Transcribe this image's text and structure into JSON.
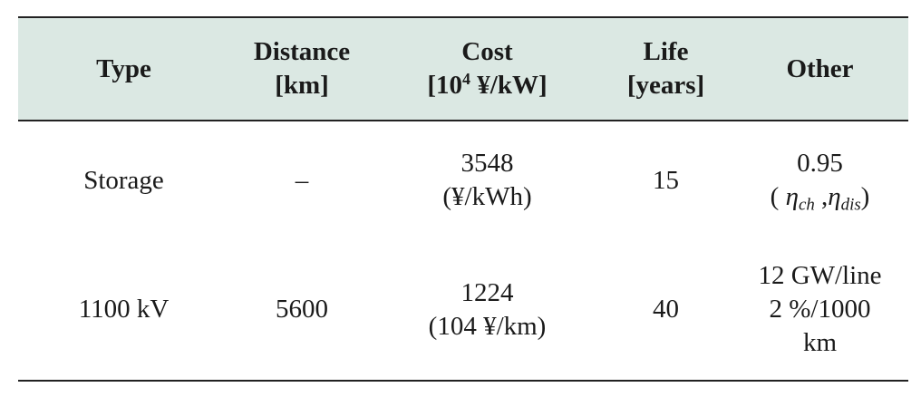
{
  "table": {
    "headers": {
      "type": "Type",
      "distance": {
        "line1": "Distance",
        "line2": "[km]"
      },
      "cost": {
        "line1": "Cost",
        "line2_prefix": "[10",
        "line2_sup": "4",
        "line2_suffix": " ¥/kW]"
      },
      "life": {
        "line1": "Life",
        "line2": "[years]"
      },
      "other": "Other"
    },
    "rows": [
      {
        "type": "Storage",
        "distance": "–",
        "cost": {
          "line1": "3548",
          "line2": "(¥/kWh)"
        },
        "life": "15",
        "other": {
          "line1": "0.95",
          "open": "( ",
          "eta1": "η",
          "sub1": "ch",
          "comma": " ,",
          "eta2": "η",
          "sub2": "dis",
          "close": ")"
        }
      },
      {
        "type": "1100 kV",
        "distance": "5600",
        "cost": {
          "line1": "1224",
          "line2": "(104 ¥/km)"
        },
        "life": "40",
        "other": {
          "line1": "12 GW/line",
          "line2": "2 %/1000",
          "line3": "km"
        }
      }
    ]
  }
}
